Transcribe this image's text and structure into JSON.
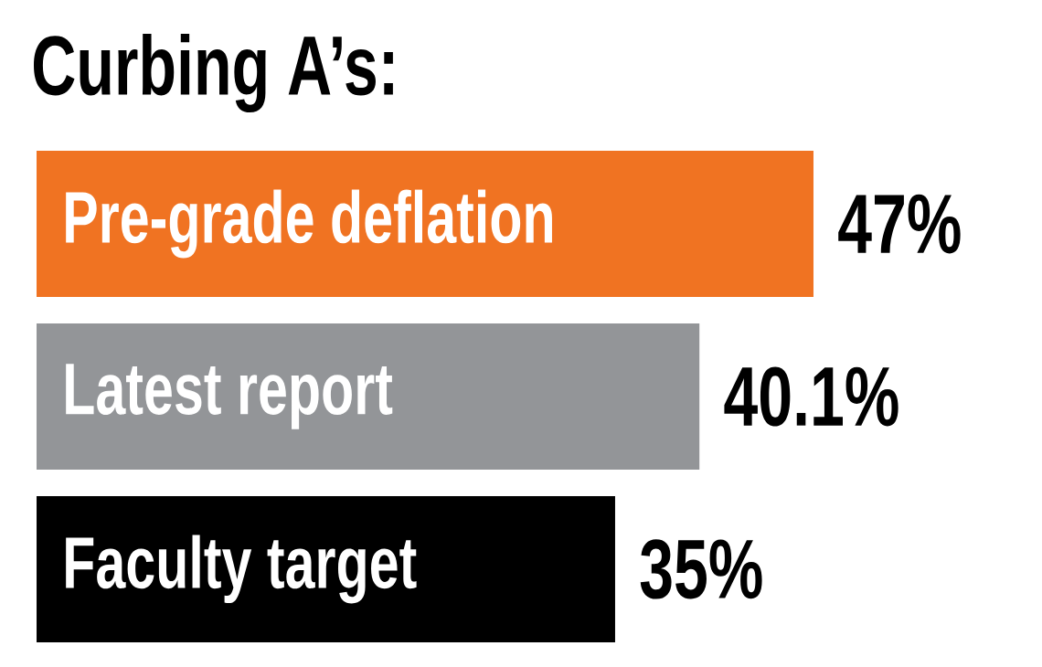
{
  "chart_data": {
    "type": "bar",
    "orientation": "horizontal",
    "title": "Curbing A’s:",
    "categories": [
      "Pre-grade deflation",
      "Latest report",
      "Faculty target"
    ],
    "values": [
      47,
      40.1,
      35
    ],
    "colors": [
      "#f07322",
      "#939598",
      "#000000"
    ],
    "value_labels": [
      "47%",
      "40.1%",
      "35%"
    ]
  }
}
